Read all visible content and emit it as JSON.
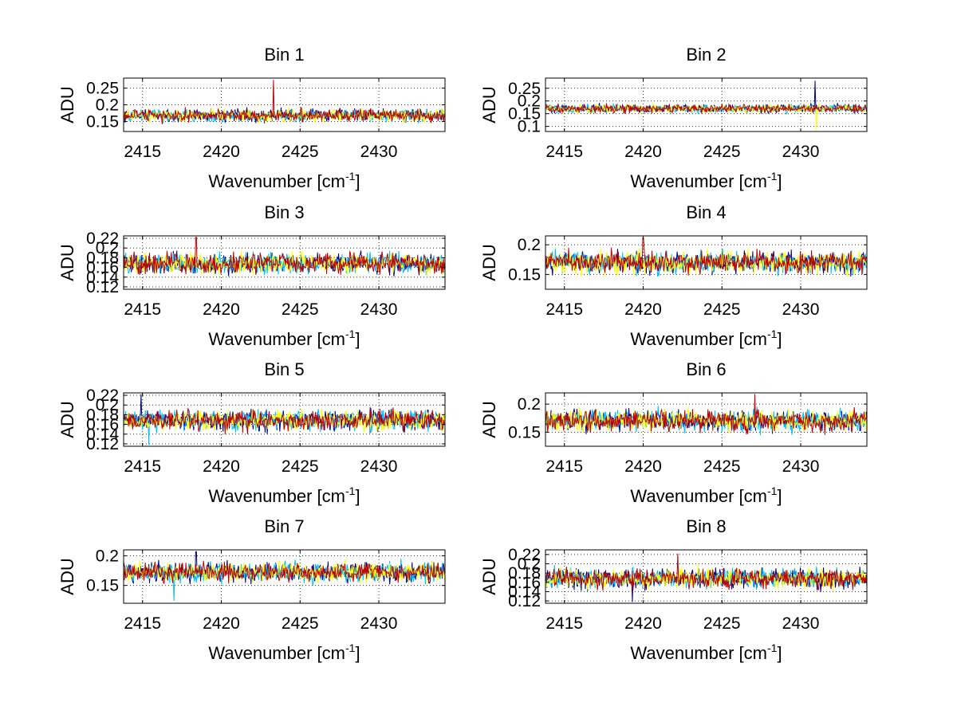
{
  "chart_data": [
    {
      "type": "line",
      "title": "Bin 1",
      "xlabel": "Wavenumber [cm",
      "xlabel_sup": "-1",
      "xlabel_end": "]",
      "ylabel": "ADU",
      "xlim": [
        2413.8,
        2434.2
      ],
      "ylim": [
        0.12,
        0.28
      ],
      "xticks": [
        2415,
        2420,
        2425,
        2430
      ],
      "yticks": [
        0.15,
        0.2,
        0.25
      ],
      "ytick_labels": [
        "0.15",
        "0.2",
        "0.25"
      ],
      "base": 0.168,
      "amp": 0.016,
      "spikes": [
        {
          "x": 2423.3,
          "y": 0.275,
          "series": 3
        }
      ],
      "series": [
        {
          "name": "s1",
          "color": "#00007f"
        },
        {
          "name": "s2",
          "color": "#00bfff"
        },
        {
          "name": "s3",
          "color": "#ffff00"
        },
        {
          "name": "s4",
          "color": "#bf0000"
        }
      ]
    },
    {
      "type": "line",
      "title": "Bin 2",
      "xlabel": "Wavenumber [cm",
      "xlabel_sup": "-1",
      "xlabel_end": "]",
      "ylabel": "ADU",
      "xlim": [
        2413.8,
        2434.2
      ],
      "ylim": [
        0.08,
        0.29
      ],
      "xticks": [
        2415,
        2420,
        2425,
        2430
      ],
      "yticks": [
        0.1,
        0.15,
        0.2,
        0.25
      ],
      "ytick_labels": [
        "0.1",
        "0.15",
        "0.2",
        "0.25"
      ],
      "base": 0.17,
      "amp": 0.014,
      "spikes": [
        {
          "x": 2430.9,
          "y": 0.28,
          "series": 0
        },
        {
          "x": 2431.0,
          "y": 0.085,
          "series": 2
        }
      ],
      "series": [
        {
          "name": "s1",
          "color": "#00007f"
        },
        {
          "name": "s2",
          "color": "#00bfff"
        },
        {
          "name": "s3",
          "color": "#ffff00"
        },
        {
          "name": "s4",
          "color": "#bf0000"
        }
      ]
    },
    {
      "type": "line",
      "title": "Bin 3",
      "xlabel": "Wavenumber [cm",
      "xlabel_sup": "-1",
      "xlabel_end": "]",
      "ylabel": "ADU",
      "xlim": [
        2413.8,
        2434.2
      ],
      "ylim": [
        0.115,
        0.225
      ],
      "xticks": [
        2415,
        2420,
        2425,
        2430
      ],
      "yticks": [
        0.12,
        0.14,
        0.16,
        0.18,
        0.2,
        0.22
      ],
      "ytick_labels": [
        "0.12",
        "0.14",
        "0.16",
        "0.18",
        "0.2",
        "0.22"
      ],
      "base": 0.168,
      "amp": 0.018,
      "spikes": [
        {
          "x": 2418.4,
          "y": 0.222,
          "series": 3
        }
      ],
      "series": [
        {
          "name": "s1",
          "color": "#00007f"
        },
        {
          "name": "s2",
          "color": "#00bfff"
        },
        {
          "name": "s3",
          "color": "#ffff00"
        },
        {
          "name": "s4",
          "color": "#bf0000"
        }
      ]
    },
    {
      "type": "line",
      "title": "Bin 4",
      "xlabel": "Wavenumber [cm",
      "xlabel_sup": "-1",
      "xlabel_end": "]",
      "ylabel": "ADU",
      "xlim": [
        2413.8,
        2434.2
      ],
      "ylim": [
        0.125,
        0.215
      ],
      "xticks": [
        2415,
        2420,
        2425,
        2430
      ],
      "yticks": [
        0.15,
        0.2
      ],
      "ytick_labels": [
        "0.15",
        "0.2"
      ],
      "base": 0.17,
      "amp": 0.016,
      "spikes": [
        {
          "x": 2420.0,
          "y": 0.212,
          "series": 3
        }
      ],
      "series": [
        {
          "name": "s1",
          "color": "#00007f"
        },
        {
          "name": "s2",
          "color": "#00bfff"
        },
        {
          "name": "s3",
          "color": "#ffff00"
        },
        {
          "name": "s4",
          "color": "#bf0000"
        }
      ]
    },
    {
      "type": "line",
      "title": "Bin 5",
      "xlabel": "Wavenumber [cm",
      "xlabel_sup": "-1",
      "xlabel_end": "]",
      "ylabel": "ADU",
      "xlim": [
        2413.8,
        2434.2
      ],
      "ylim": [
        0.115,
        0.225
      ],
      "xticks": [
        2415,
        2420,
        2425,
        2430
      ],
      "yticks": [
        0.12,
        0.14,
        0.16,
        0.18,
        0.2,
        0.22
      ],
      "ytick_labels": [
        "0.12",
        "0.14",
        "0.16",
        "0.18",
        "0.2",
        "0.22"
      ],
      "base": 0.168,
      "amp": 0.018,
      "spikes": [
        {
          "x": 2414.9,
          "y": 0.222,
          "series": 0
        },
        {
          "x": 2415.4,
          "y": 0.118,
          "series": 1
        }
      ],
      "series": [
        {
          "name": "s1",
          "color": "#00007f"
        },
        {
          "name": "s2",
          "color": "#00bfff"
        },
        {
          "name": "s3",
          "color": "#ffff00"
        },
        {
          "name": "s4",
          "color": "#bf0000"
        }
      ]
    },
    {
      "type": "line",
      "title": "Bin 6",
      "xlabel": "Wavenumber [cm",
      "xlabel_sup": "-1",
      "xlabel_end": "]",
      "ylabel": "ADU",
      "xlim": [
        2413.8,
        2434.2
      ],
      "ylim": [
        0.125,
        0.22
      ],
      "xticks": [
        2415,
        2420,
        2425,
        2430
      ],
      "yticks": [
        0.15,
        0.2
      ],
      "ytick_labels": [
        "0.15",
        "0.2"
      ],
      "base": 0.17,
      "amp": 0.016,
      "spikes": [
        {
          "x": 2427.1,
          "y": 0.218,
          "series": 3
        }
      ],
      "series": [
        {
          "name": "s1",
          "color": "#00007f"
        },
        {
          "name": "s2",
          "color": "#00bfff"
        },
        {
          "name": "s3",
          "color": "#ffff00"
        },
        {
          "name": "s4",
          "color": "#bf0000"
        }
      ]
    },
    {
      "type": "line",
      "title": "Bin 7",
      "xlabel": "Wavenumber [cm",
      "xlabel_sup": "-1",
      "xlabel_end": "]",
      "ylabel": "ADU",
      "xlim": [
        2413.8,
        2434.2
      ],
      "ylim": [
        0.12,
        0.21
      ],
      "xticks": [
        2415,
        2420,
        2425,
        2430
      ],
      "yticks": [
        0.15,
        0.2
      ],
      "ytick_labels": [
        "0.15",
        "0.2"
      ],
      "base": 0.172,
      "amp": 0.014,
      "spikes": [
        {
          "x": 2417.0,
          "y": 0.124,
          "series": 1
        },
        {
          "x": 2418.4,
          "y": 0.207,
          "series": 0
        }
      ],
      "series": [
        {
          "name": "s1",
          "color": "#00007f"
        },
        {
          "name": "s2",
          "color": "#00bfff"
        },
        {
          "name": "s3",
          "color": "#ffff00"
        },
        {
          "name": "s4",
          "color": "#bf0000"
        }
      ]
    },
    {
      "type": "line",
      "title": "Bin 8",
      "xlabel": "Wavenumber [cm",
      "xlabel_sup": "-1",
      "xlabel_end": "]",
      "ylabel": "ADU",
      "xlim": [
        2413.8,
        2434.2
      ],
      "ylim": [
        0.115,
        0.23
      ],
      "xticks": [
        2415,
        2420,
        2425,
        2430
      ],
      "yticks": [
        0.12,
        0.14,
        0.16,
        0.18,
        0.2,
        0.22
      ],
      "ytick_labels": [
        "0.12",
        "0.14",
        "0.16",
        "0.18",
        "0.2",
        "0.22"
      ],
      "base": 0.168,
      "amp": 0.018,
      "spikes": [
        {
          "x": 2422.2,
          "y": 0.222,
          "series": 3
        },
        {
          "x": 2419.3,
          "y": 0.118,
          "series": 0
        }
      ],
      "series": [
        {
          "name": "s1",
          "color": "#00007f"
        },
        {
          "name": "s2",
          "color": "#00bfff"
        },
        {
          "name": "s3",
          "color": "#ffff00"
        },
        {
          "name": "s4",
          "color": "#bf0000"
        }
      ]
    }
  ]
}
